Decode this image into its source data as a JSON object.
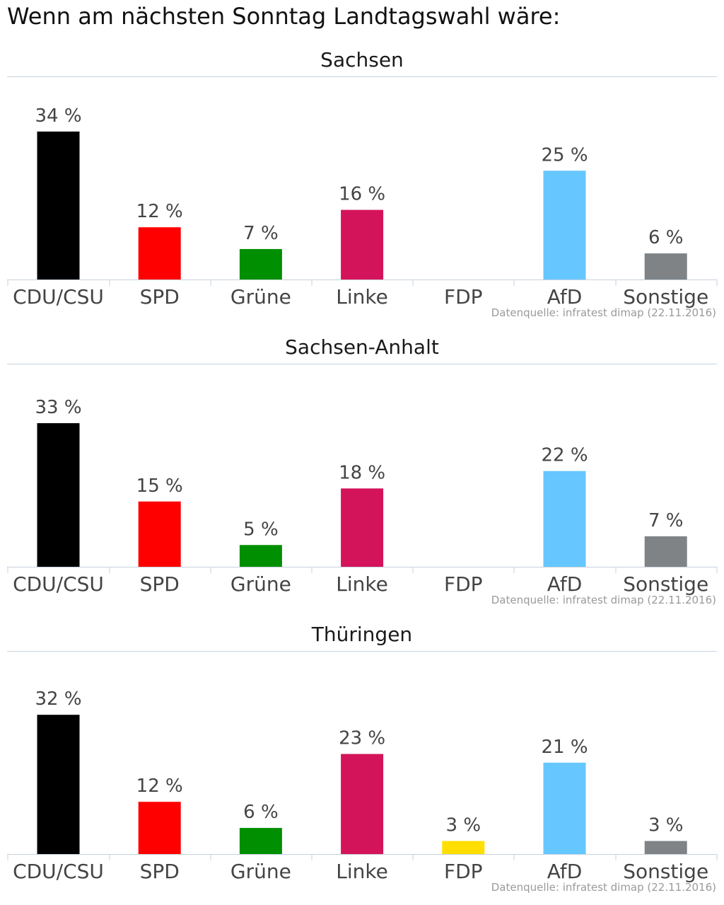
{
  "title": "Wenn am nächsten Sonntag Landtagswahl wäre:",
  "colors": {
    "CDU/CSU": "#000000",
    "SPD": "#ff0000",
    "Grüne": "#008f00",
    "Linke": "#d4145a",
    "FDP": "#ffde00",
    "AfD": "#66c6ff",
    "Sonstige": "#7f8386",
    "axis": "#c7d2dc",
    "label_text": "#444444",
    "source_text": "#9a9a9a"
  },
  "value_suffix": " %",
  "chart_data": [
    {
      "type": "bar",
      "title": "Sachsen",
      "categories": [
        "CDU/CSU",
        "SPD",
        "Grüne",
        "Linke",
        "FDP",
        "AfD",
        "Sonstige"
      ],
      "values": [
        34,
        12,
        7,
        16,
        null,
        25,
        6
      ],
      "source": "Datenquelle: infratest dimap (22.11.2016)",
      "ylim": [
        0,
        34
      ],
      "grid": false,
      "legend": "none"
    },
    {
      "type": "bar",
      "title": "Sachsen-Anhalt",
      "categories": [
        "CDU/CSU",
        "SPD",
        "Grüne",
        "Linke",
        "FDP",
        "AfD",
        "Sonstige"
      ],
      "values": [
        33,
        15,
        5,
        18,
        null,
        22,
        7
      ],
      "source": "Datenquelle: infratest dimap (22.11.2016)",
      "ylim": [
        0,
        33
      ],
      "grid": false,
      "legend": "none"
    },
    {
      "type": "bar",
      "title": "Thüringen",
      "categories": [
        "CDU/CSU",
        "SPD",
        "Grüne",
        "Linke",
        "FDP",
        "AfD",
        "Sonstige"
      ],
      "values": [
        32,
        12,
        6,
        23,
        3,
        21,
        3
      ],
      "source": "Datenquelle: infratest dimap (22.11.2016)",
      "ylim": [
        0,
        32
      ],
      "grid": false,
      "legend": "none"
    }
  ]
}
